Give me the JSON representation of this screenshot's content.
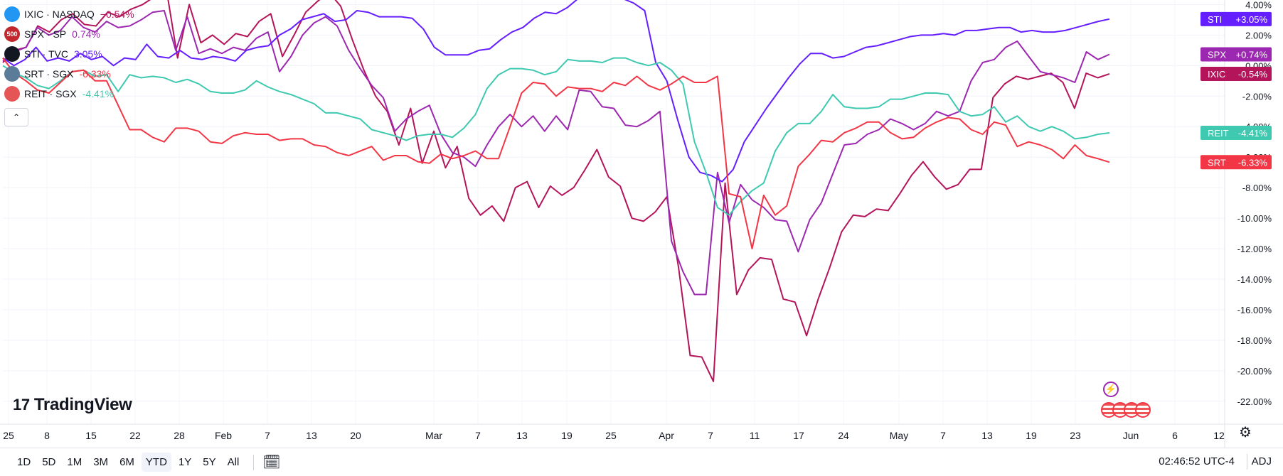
{
  "chart_data": {
    "type": "line",
    "x_labels": [
      "25",
      "8",
      "15",
      "22",
      "28",
      "Feb",
      "7",
      "13",
      "20",
      "Mar",
      "7",
      "13",
      "19",
      "25",
      "Apr",
      "7",
      "11",
      "17",
      "24",
      "May",
      "7",
      "13",
      "19",
      "23",
      "Jun",
      "6",
      "12"
    ],
    "y_ticks": [
      "4.00%",
      "2.00%",
      "0.00%",
      "-2.00%",
      "-4.00%",
      "-6.00%",
      "-8.00%",
      "-10.00%",
      "-12.00%",
      "-14.00%",
      "-16.00%",
      "-18.00%",
      "-20.00%",
      "-22.00%"
    ],
    "ylim": [
      -23.5,
      4.3
    ],
    "series": [
      {
        "name": "IXIC",
        "exchange": "NASDAQ",
        "change": "−0.54%",
        "tag": "-0.54%",
        "color": "#b4145a",
        "values": [
          0.2,
          1.0,
          1.2,
          2.6,
          2.2,
          3.0,
          3.4,
          2.7,
          2.6,
          3.5,
          3.2,
          3.7,
          4.0,
          4.5,
          5.2,
          0.5,
          4.0,
          1.5,
          2.0,
          1.4,
          2.1,
          1.9,
          2.9,
          3.4,
          0.6,
          2.0,
          3.5,
          4.2,
          4.8,
          3.9,
          1.7,
          -0.3,
          -2.0,
          -3.0,
          -5.2,
          -2.8,
          -6.4,
          -4.3,
          -6.7,
          -5.3,
          -8.7,
          -9.8,
          -9.2,
          -10.2,
          -8.0,
          -7.6,
          -9.3,
          -7.9,
          -8.5,
          -8.0,
          -6.8,
          -5.5,
          -7.3,
          -7.9,
          -10.0,
          -10.2,
          -9.6,
          -8.6,
          -13.2,
          -19.0,
          -19.1,
          -20.7,
          -7.7,
          -15.0,
          -13.4,
          -12.6,
          -12.7,
          -15.3,
          -15.5,
          -17.7,
          -15.3,
          -13.2,
          -10.9,
          -9.8,
          -9.9,
          -9.4,
          -9.5,
          -8.4,
          -7.2,
          -6.3,
          -7.3,
          -8.1,
          -7.8,
          -6.8,
          -6.8,
          -2.1,
          -1.2,
          -0.7,
          -0.9,
          -0.7,
          -0.5,
          -1.1,
          -2.8,
          -0.5,
          -0.8,
          -0.54
        ]
      },
      {
        "name": "SPX",
        "exchange": "SP",
        "change": "0.74%",
        "tag": "+0.74%",
        "color": "#9c27b0",
        "values": [
          0.3,
          0.9,
          1.2,
          2.5,
          2.0,
          2.3,
          3.2,
          2.5,
          2.2,
          2.9,
          2.5,
          2.6,
          3.0,
          3.5,
          3.6,
          1.0,
          3.2,
          0.8,
          1.1,
          0.8,
          1.2,
          1.0,
          1.8,
          2.2,
          -0.4,
          0.6,
          2.0,
          2.8,
          3.2,
          2.6,
          1.0,
          -0.2,
          -1.3,
          -2.1,
          -4.3,
          -3.5,
          -3.0,
          -2.6,
          -4.5,
          -5.7,
          -6.0,
          -6.6,
          -5.2,
          -4.0,
          -3.2,
          -4.0,
          -3.3,
          -4.3,
          -3.3,
          -4.2,
          -1.6,
          -1.7,
          -2.7,
          -2.8,
          -3.9,
          -4.0,
          -3.6,
          -3.0,
          -11.5,
          -13.5,
          -15.0,
          -15.0,
          -7.0,
          -10.3,
          -7.8,
          -8.8,
          -9.3,
          -10.1,
          -10.2,
          -12.2,
          -10.1,
          -9.0,
          -7.1,
          -5.2,
          -5.1,
          -4.5,
          -4.2,
          -3.5,
          -3.8,
          -4.2,
          -3.8,
          -3.0,
          -3.3,
          -3.0,
          -1.0,
          0.2,
          0.4,
          1.2,
          1.6,
          0.6,
          -0.4,
          -0.6,
          -0.8,
          -1.1,
          0.9,
          0.4,
          0.74
        ]
      },
      {
        "name": "STI",
        "exchange": "TVC",
        "change": "3.05%",
        "tag": "+3.05%",
        "color": "#651fff",
        "values": [
          0.5,
          0.0,
          0.4,
          1.2,
          0.3,
          0.5,
          0.3,
          0.8,
          0.4,
          0.6,
          0.0,
          0.5,
          0.4,
          1.4,
          0.6,
          0.5,
          1.0,
          0.5,
          0.4,
          0.6,
          0.5,
          0.3,
          1.0,
          1.2,
          1.3,
          2.0,
          2.4,
          3.0,
          3.2,
          3.4,
          2.9,
          3.0,
          3.6,
          3.5,
          3.2,
          3.2,
          3.2,
          3.1,
          2.4,
          1.2,
          0.7,
          0.7,
          0.7,
          1.0,
          1.1,
          1.7,
          2.2,
          2.5,
          3.1,
          3.5,
          3.4,
          3.8,
          4.4,
          4.5,
          4.6,
          4.5,
          4.4,
          4.1,
          3.6,
          0.2,
          -1.0,
          -3.6,
          -6.0,
          -7.0,
          -7.2,
          -7.6,
          -6.8,
          -5.0,
          -3.9,
          -2.8,
          -1.8,
          -0.8,
          0.1,
          0.8,
          0.8,
          0.5,
          0.6,
          0.9,
          1.2,
          1.3,
          1.5,
          1.7,
          1.9,
          2.0,
          2.0,
          2.1,
          2.0,
          2.3,
          2.3,
          2.4,
          2.5,
          2.5,
          2.2,
          2.3,
          2.2,
          2.2,
          2.3,
          2.5,
          2.7,
          2.9,
          3.05
        ]
      },
      {
        "name": "REIT",
        "exchange": "SGX",
        "change": "-4.41%",
        "tag": "-4.41%",
        "color": "#3ec9b0",
        "values": [
          0.0,
          -0.5,
          -0.8,
          -1.3,
          -1.5,
          -1.0,
          -0.4,
          -0.3,
          -0.7,
          -0.6,
          -1.7,
          -0.6,
          -0.8,
          -0.7,
          -0.8,
          -1.1,
          -0.9,
          -1.2,
          -1.7,
          -1.8,
          -1.8,
          -1.6,
          -1.0,
          -1.4,
          -1.7,
          -1.9,
          -2.2,
          -2.5,
          -3.1,
          -3.1,
          -3.3,
          -3.5,
          -4.2,
          -4.4,
          -4.6,
          -4.9,
          -4.6,
          -4.5,
          -4.5,
          -4.7,
          -4.1,
          -3.2,
          -1.5,
          -0.6,
          -0.2,
          -0.2,
          -0.3,
          -0.6,
          -0.4,
          0.4,
          0.3,
          0.3,
          0.2,
          0.5,
          0.5,
          0.2,
          0.0,
          0.2,
          -0.3,
          -1.2,
          -5.0,
          -7.0,
          -9.3,
          -9.8,
          -8.9,
          -8.2,
          -7.7,
          -5.6,
          -4.4,
          -3.8,
          -3.8,
          -3.0,
          -1.9,
          -2.7,
          -2.8,
          -2.8,
          -2.7,
          -2.2,
          -2.2,
          -2.0,
          -1.8,
          -1.8,
          -1.9,
          -3.0,
          -3.3,
          -3.2,
          -2.7,
          -3.7,
          -3.3,
          -4.0,
          -4.3,
          -4.0,
          -4.3,
          -4.8,
          -4.7,
          -4.5,
          -4.41
        ]
      },
      {
        "name": "SRT",
        "exchange": "SGX",
        "change": "-6.33%",
        "tag": "-6.33%",
        "color": "#f23645",
        "values": [
          0.5,
          -0.5,
          -1.0,
          -1.6,
          -1.8,
          -1.1,
          -0.4,
          -0.3,
          -1.0,
          -1.0,
          -2.6,
          -4.2,
          -4.2,
          -4.7,
          -5.0,
          -4.1,
          -4.1,
          -4.3,
          -5.0,
          -5.1,
          -4.6,
          -4.4,
          -4.5,
          -4.5,
          -4.9,
          -4.8,
          -4.8,
          -5.2,
          -5.3,
          -5.7,
          -5.9,
          -5.6,
          -5.3,
          -6.2,
          -5.9,
          -5.9,
          -6.3,
          -6.4,
          -5.8,
          -6.1,
          -5.9,
          -5.6,
          -6.1,
          -6.1,
          -4.0,
          -1.8,
          -1.1,
          -1.2,
          -2.0,
          -1.4,
          -1.5,
          -1.5,
          -1.7,
          -1.1,
          -1.3,
          -0.7,
          -1.3,
          -1.6,
          -1.2,
          -0.7,
          -1.1,
          -1.1,
          -0.7,
          -8.4,
          -8.6,
          -12.0,
          -8.5,
          -9.8,
          -9.2,
          -6.6,
          -5.8,
          -4.9,
          -5.0,
          -4.4,
          -4.1,
          -3.7,
          -3.7,
          -4.4,
          -4.8,
          -4.7,
          -4.1,
          -3.7,
          -3.4,
          -3.5,
          -4.2,
          -4.5,
          -3.7,
          -3.9,
          -5.3,
          -5.0,
          -5.2,
          -5.5,
          -6.1,
          -5.2,
          -5.9,
          -6.1,
          -6.33
        ]
      }
    ]
  },
  "legend": [
    {
      "symbol": "IXIC",
      "exchange": "NASDAQ",
      "value": "−0.54%",
      "icon_text": "",
      "icon_color": "#2196f3",
      "value_color": "#b4145a"
    },
    {
      "symbol": "SPX",
      "exchange": "SP",
      "value": "0.74%",
      "icon_text": "500",
      "icon_color": "#c1272d",
      "value_color": "#9c27b0"
    },
    {
      "symbol": "STI",
      "exchange": "TVC",
      "value": "3.05%",
      "icon_text": "",
      "icon_color": "#131722",
      "value_color": "#651fff"
    },
    {
      "symbol": "SRT",
      "exchange": "SGX",
      "value": "-6.33%",
      "icon_text": "",
      "icon_color": "#5b7c99",
      "value_color": "#f23645"
    },
    {
      "symbol": "REIT",
      "exchange": "SGX",
      "value": "-4.41%",
      "icon_text": "",
      "icon_color": "#e55555",
      "value_color": "#3ec9b0"
    }
  ],
  "collapse_icon": "chevron-up-icon",
  "branding": {
    "logo_text": "TradingView",
    "logo_mark": "17"
  },
  "toolbar": {
    "ranges": [
      "1D",
      "5D",
      "1M",
      "3M",
      "6M",
      "YTD",
      "1Y",
      "5Y",
      "All"
    ],
    "active_range": "YTD",
    "calendar_icon": "calendar-goto-icon",
    "clock": "02:46:52 UTC-4",
    "adjust": "ADJ"
  },
  "colors": {
    "grid": "#f0f3fa",
    "axis_text": "#131722",
    "background": "#ffffff"
  }
}
